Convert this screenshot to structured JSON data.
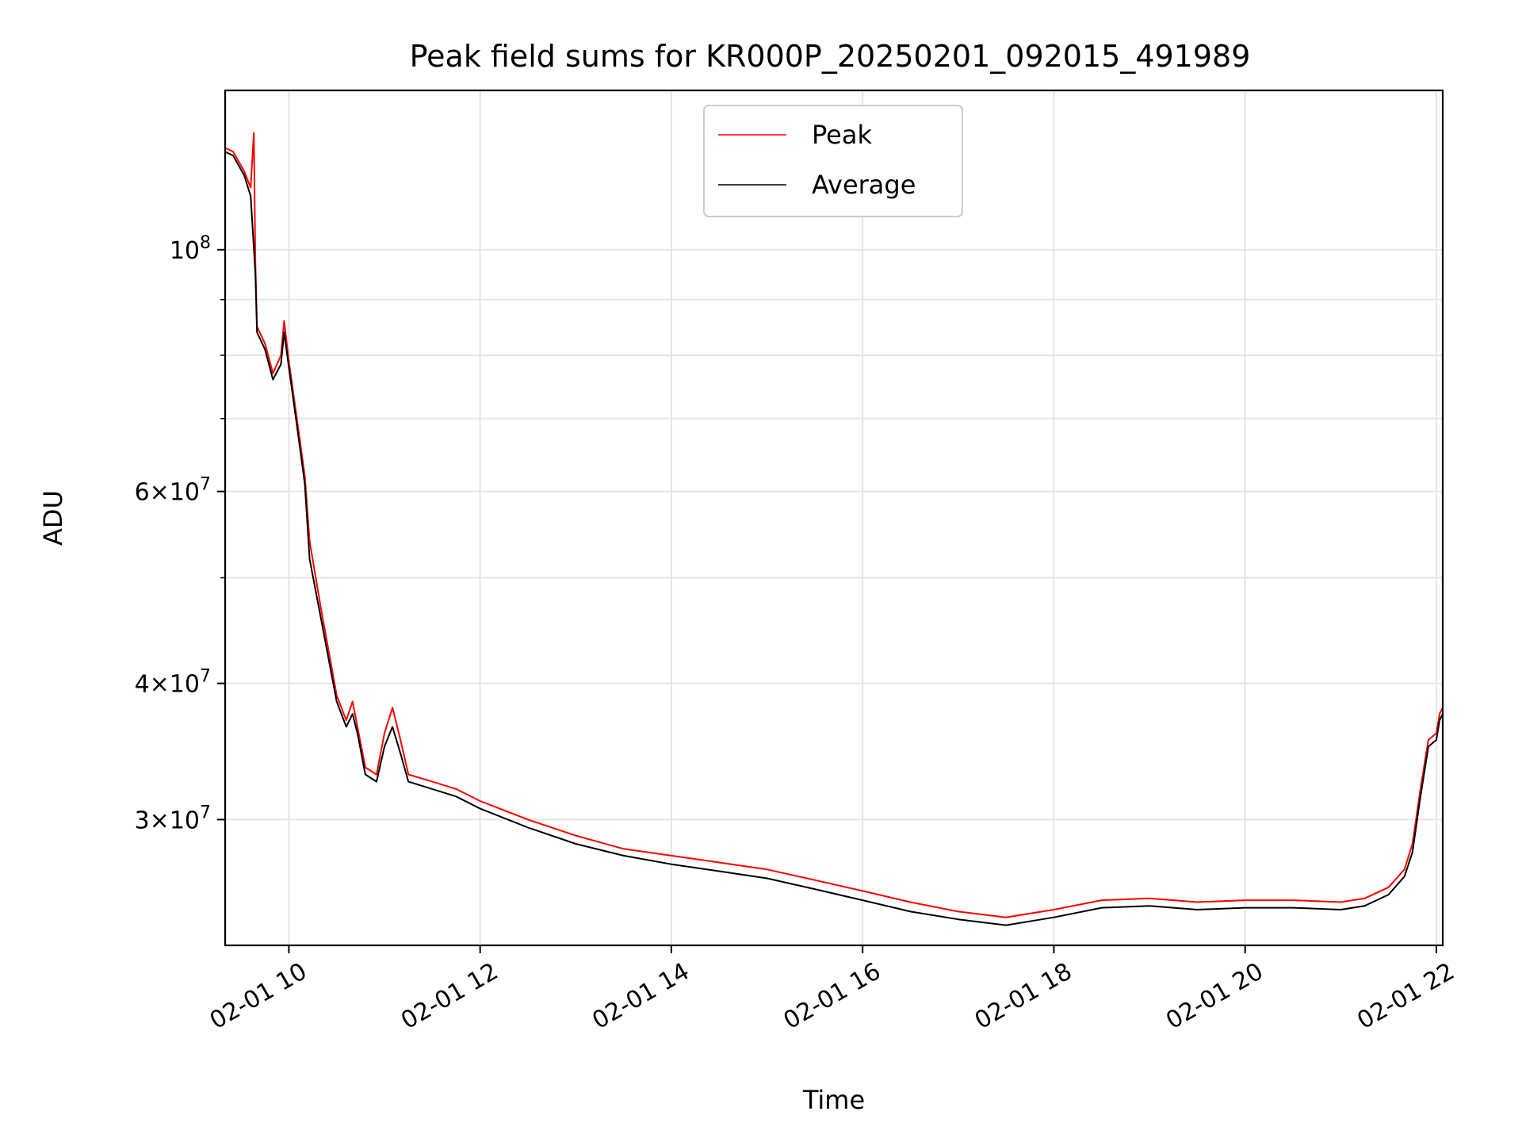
{
  "chart_data": {
    "type": "line",
    "title": "Peak field sums for KR000P_20250201_092015_491989",
    "xlabel": "Time",
    "ylabel": "ADU",
    "y_scale": "log",
    "xlim": [
      "02-01 09:20",
      "02-01 22:04"
    ],
    "ylim": [
      23000000,
      140000000
    ],
    "grid": true,
    "legend_position": "top-center",
    "x_ticks": [
      {
        "x": "02-01 10:00",
        "label": "02-01 10"
      },
      {
        "x": "02-01 12:00",
        "label": "02-01 12"
      },
      {
        "x": "02-01 14:00",
        "label": "02-01 14"
      },
      {
        "x": "02-01 16:00",
        "label": "02-01 16"
      },
      {
        "x": "02-01 18:00",
        "label": "02-01 18"
      },
      {
        "x": "02-01 20:00",
        "label": "02-01 20"
      },
      {
        "x": "02-01 22:00",
        "label": "02-01 22"
      }
    ],
    "y_ticks": [
      {
        "y": 30000000,
        "base": "3",
        "exp": "7"
      },
      {
        "y": 40000000,
        "base": "4",
        "exp": "7"
      },
      {
        "y": 60000000,
        "base": "6",
        "exp": "7"
      },
      {
        "y": 100000000,
        "base": "",
        "exp": "8"
      }
    ],
    "y_minor_ticks": [
      50000000,
      70000000,
      80000000,
      90000000
    ],
    "series": [
      {
        "name": "Peak",
        "color": "#ff0000",
        "points": [
          [
            "02-01 09:20",
            124000000
          ],
          [
            "02-01 09:25",
            123000000
          ],
          [
            "02-01 09:32",
            118000000
          ],
          [
            "02-01 09:36",
            114000000
          ],
          [
            "02-01 09:38",
            128000000
          ],
          [
            "02-01 09:39",
            97000000
          ],
          [
            "02-01 09:40",
            85000000
          ],
          [
            "02-01 09:45",
            82000000
          ],
          [
            "02-01 09:50",
            77000000
          ],
          [
            "02-01 09:55",
            80000000
          ],
          [
            "02-01 09:57",
            86000000
          ],
          [
            "02-01 10:00",
            79000000
          ],
          [
            "02-01 10:05",
            70000000
          ],
          [
            "02-01 10:10",
            62000000
          ],
          [
            "02-01 10:13",
            54000000
          ],
          [
            "02-01 10:20",
            47000000
          ],
          [
            "02-01 10:30",
            39000000
          ],
          [
            "02-01 10:36",
            37000000
          ],
          [
            "02-01 10:40",
            38500000
          ],
          [
            "02-01 10:43",
            36500000
          ],
          [
            "02-01 10:48",
            33500000
          ],
          [
            "02-01 10:55",
            33000000
          ],
          [
            "02-01 11:00",
            36000000
          ],
          [
            "02-01 11:05",
            38000000
          ],
          [
            "02-01 11:10",
            35500000
          ],
          [
            "02-01 11:15",
            33000000
          ],
          [
            "02-01 11:30",
            32500000
          ],
          [
            "02-01 11:45",
            32000000
          ],
          [
            "02-01 12:00",
            31200000
          ],
          [
            "02-01 12:30",
            30000000
          ],
          [
            "02-01 13:00",
            29000000
          ],
          [
            "02-01 13:30",
            28200000
          ],
          [
            "02-01 14:00",
            27800000
          ],
          [
            "02-01 14:30",
            27400000
          ],
          [
            "02-01 15:00",
            27000000
          ],
          [
            "02-01 15:30",
            26400000
          ],
          [
            "02-01 16:00",
            25800000
          ],
          [
            "02-01 16:30",
            25200000
          ],
          [
            "02-01 17:00",
            24700000
          ],
          [
            "02-01 17:30",
            24400000
          ],
          [
            "02-01 18:00",
            24800000
          ],
          [
            "02-01 18:30",
            25300000
          ],
          [
            "02-01 19:00",
            25400000
          ],
          [
            "02-01 19:30",
            25200000
          ],
          [
            "02-01 20:00",
            25300000
          ],
          [
            "02-01 20:30",
            25300000
          ],
          [
            "02-01 21:00",
            25200000
          ],
          [
            "02-01 21:15",
            25400000
          ],
          [
            "02-01 21:30",
            26000000
          ],
          [
            "02-01 21:40",
            27000000
          ],
          [
            "02-01 21:45",
            28500000
          ],
          [
            "02-01 21:50",
            32000000
          ],
          [
            "02-01 21:55",
            35500000
          ],
          [
            "02-01 22:00",
            36000000
          ],
          [
            "02-01 22:02",
            37500000
          ],
          [
            "02-01 22:04",
            38000000
          ]
        ]
      },
      {
        "name": "Average",
        "color": "#000000",
        "points": [
          [
            "02-01 09:20",
            123000000
          ],
          [
            "02-01 09:25",
            122000000
          ],
          [
            "02-01 09:32",
            117000000
          ],
          [
            "02-01 09:36",
            112000000
          ],
          [
            "02-01 09:39",
            95000000
          ],
          [
            "02-01 09:40",
            84000000
          ],
          [
            "02-01 09:45",
            81000000
          ],
          [
            "02-01 09:50",
            76000000
          ],
          [
            "02-01 09:55",
            78500000
          ],
          [
            "02-01 09:57",
            84000000
          ],
          [
            "02-01 10:00",
            78000000
          ],
          [
            "02-01 10:05",
            69000000
          ],
          [
            "02-01 10:10",
            61000000
          ],
          [
            "02-01 10:13",
            52000000
          ],
          [
            "02-01 10:20",
            46000000
          ],
          [
            "02-01 10:30",
            38500000
          ],
          [
            "02-01 10:36",
            36500000
          ],
          [
            "02-01 10:40",
            37500000
          ],
          [
            "02-01 10:43",
            36000000
          ],
          [
            "02-01 10:48",
            33000000
          ],
          [
            "02-01 10:55",
            32500000
          ],
          [
            "02-01 11:00",
            35000000
          ],
          [
            "02-01 11:05",
            36500000
          ],
          [
            "02-01 11:10",
            34500000
          ],
          [
            "02-01 11:15",
            32500000
          ],
          [
            "02-01 11:30",
            32000000
          ],
          [
            "02-01 11:45",
            31500000
          ],
          [
            "02-01 12:00",
            30700000
          ],
          [
            "02-01 12:30",
            29500000
          ],
          [
            "02-01 13:00",
            28500000
          ],
          [
            "02-01 13:30",
            27800000
          ],
          [
            "02-01 14:00",
            27300000
          ],
          [
            "02-01 14:30",
            26900000
          ],
          [
            "02-01 15:00",
            26500000
          ],
          [
            "02-01 15:30",
            25900000
          ],
          [
            "02-01 16:00",
            25300000
          ],
          [
            "02-01 16:30",
            24700000
          ],
          [
            "02-01 17:00",
            24300000
          ],
          [
            "02-01 17:30",
            24000000
          ],
          [
            "02-01 18:00",
            24400000
          ],
          [
            "02-01 18:30",
            24900000
          ],
          [
            "02-01 19:00",
            25000000
          ],
          [
            "02-01 19:30",
            24800000
          ],
          [
            "02-01 20:00",
            24900000
          ],
          [
            "02-01 20:30",
            24900000
          ],
          [
            "02-01 21:00",
            24800000
          ],
          [
            "02-01 21:15",
            25000000
          ],
          [
            "02-01 21:30",
            25600000
          ],
          [
            "02-01 21:40",
            26600000
          ],
          [
            "02-01 21:45",
            28000000
          ],
          [
            "02-01 21:50",
            31500000
          ],
          [
            "02-01 21:55",
            35000000
          ],
          [
            "02-01 22:00",
            35500000
          ],
          [
            "02-01 22:02",
            37000000
          ],
          [
            "02-01 22:04",
            37500000
          ]
        ]
      }
    ]
  }
}
